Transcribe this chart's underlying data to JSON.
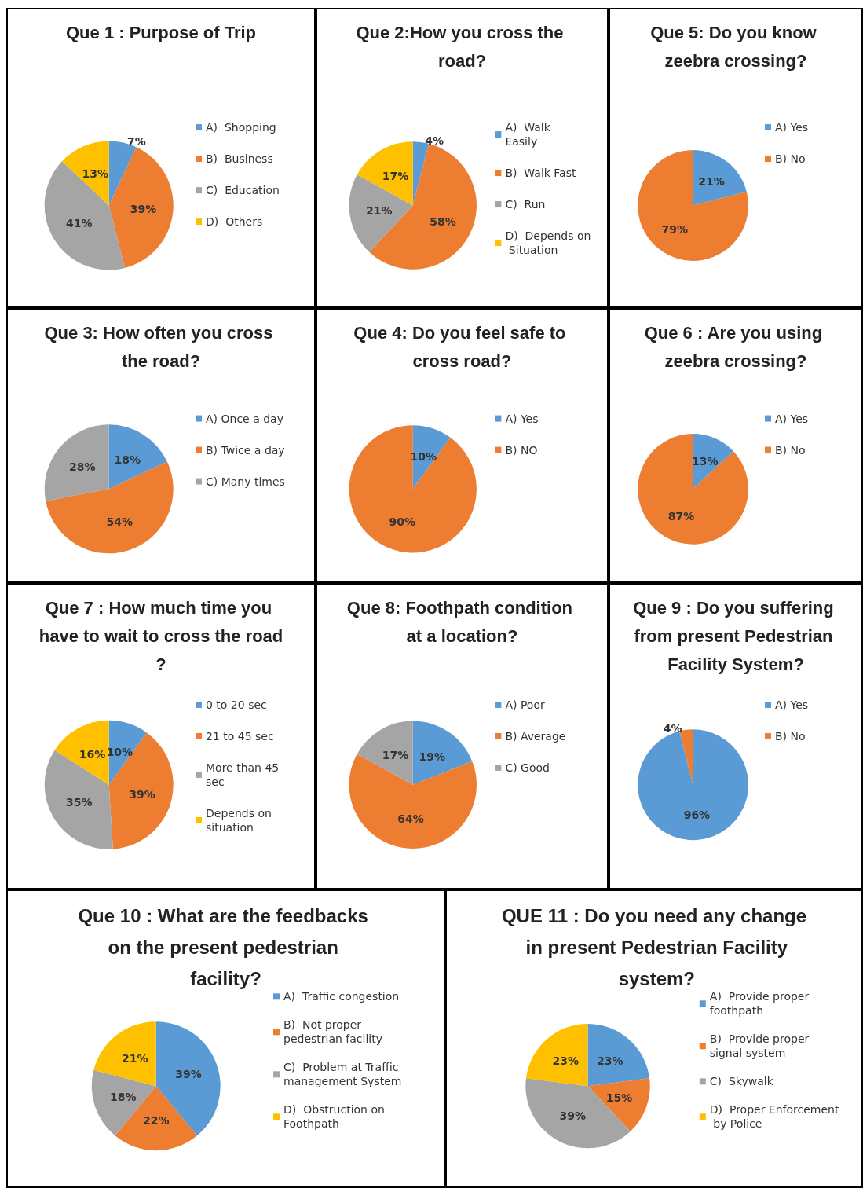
{
  "chart_data": [
    {
      "type": "pie",
      "title": "Que 1 : Purpose of Trip",
      "categories": [
        "A)  Shopping",
        "B)  Business",
        "C)  Education",
        "D)  Others"
      ],
      "values": [
        7,
        39,
        41,
        13
      ],
      "value_labels": [
        "7%",
        "39%",
        "41%",
        "13%"
      ],
      "colors": [
        "#5b9bd5",
        "#ed7d31",
        "#a5a5a5",
        "#ffc000"
      ],
      "legend": "right"
    },
    {
      "type": "pie",
      "title": "Que 2:How you cross the road?",
      "categories": [
        "A)  Walk Easily",
        "B)  Walk Fast",
        "C)  Run",
        "D)  Depends on Situation"
      ],
      "values": [
        4,
        58,
        21,
        17
      ],
      "value_labels": [
        "4%",
        "58%",
        "21%",
        "17%"
      ],
      "colors": [
        "#5b9bd5",
        "#ed7d31",
        "#a5a5a5",
        "#ffc000"
      ],
      "legend": "right"
    },
    {
      "type": "pie",
      "title": "Que 5: Do you know zeebra crossing?",
      "categories": [
        "A) Yes",
        "B) No"
      ],
      "values": [
        21,
        79
      ],
      "value_labels": [
        "21%",
        "79%"
      ],
      "colors": [
        "#5b9bd5",
        "#ed7d31"
      ],
      "legend": "right"
    },
    {
      "type": "pie",
      "title": "Que 3: How often you cross the road?",
      "categories": [
        "A) Once a day",
        "B) Twice a day",
        "C) Many times"
      ],
      "values": [
        18,
        54,
        28
      ],
      "value_labels": [
        "18%",
        "54%",
        "28%"
      ],
      "colors": [
        "#5b9bd5",
        "#ed7d31",
        "#a5a5a5"
      ],
      "legend": "right"
    },
    {
      "type": "pie",
      "title": "Que 4: Do you feel safe to cross road?",
      "categories": [
        "A) Yes",
        "B) NO"
      ],
      "values": [
        10,
        90
      ],
      "value_labels": [
        "10%",
        "90%"
      ],
      "colors": [
        "#5b9bd5",
        "#ed7d31"
      ],
      "legend": "right"
    },
    {
      "type": "pie",
      "title": "Que 6 : Are you using zeebra crossing?",
      "categories": [
        "A) Yes",
        "B) No"
      ],
      "values": [
        13,
        87
      ],
      "value_labels": [
        "13%",
        "87%"
      ],
      "colors": [
        "#5b9bd5",
        "#ed7d31"
      ],
      "legend": "right"
    },
    {
      "type": "pie",
      "title": "Que 7 : How much time you have to wait to cross the road?",
      "categories": [
        "0 to 20 sec",
        "21 to 45 sec",
        "More than 45 sec",
        "Depends on situation"
      ],
      "values": [
        10,
        39,
        35,
        16
      ],
      "value_labels": [
        "10%",
        "39%",
        "35%",
        "16%"
      ],
      "colors": [
        "#5b9bd5",
        "#ed7d31",
        "#a5a5a5",
        "#ffc000"
      ],
      "legend": "right"
    },
    {
      "type": "pie",
      "title": "Que 8: Foothpath condition at a location?",
      "categories": [
        "A) Poor",
        "B) Average",
        "C) Good"
      ],
      "values": [
        19,
        64,
        17
      ],
      "value_labels": [
        "19%",
        "64%",
        "17%"
      ],
      "colors": [
        "#5b9bd5",
        "#ed7d31",
        "#a5a5a5"
      ],
      "legend": "right"
    },
    {
      "type": "pie",
      "title": "Que 9 : Do you suffering from present Pedestrian Facility System?",
      "categories": [
        "A) Yes",
        "B) No"
      ],
      "values": [
        96,
        4
      ],
      "value_labels": [
        "96%",
        "4%"
      ],
      "colors": [
        "#5b9bd5",
        "#ed7d31"
      ],
      "legend": "right"
    },
    {
      "type": "pie",
      "title": "Que 10 : What are the feedbacks on the present pedestrian facility?",
      "categories": [
        "A)  Traffic congestion",
        "B)  Not proper pedestrian facility",
        "C)  Problem at Traffic management System",
        "D)  Obstruction on Foothpath"
      ],
      "values": [
        39,
        22,
        18,
        21
      ],
      "value_labels": [
        "39%",
        "22%",
        "18%",
        "21%"
      ],
      "colors": [
        "#5b9bd5",
        "#ed7d31",
        "#a5a5a5",
        "#ffc000"
      ],
      "legend": "right"
    },
    {
      "type": "pie",
      "title": "QUE 11 : Do you need any change in present Pedestrian Facility system?",
      "categories": [
        "A)  Provide proper foothpath",
        "B)  Provide proper signal system",
        "C)  Skywalk",
        "D)  Proper Enforcement by Police"
      ],
      "values": [
        23,
        15,
        39,
        23
      ],
      "value_labels": [
        "23%",
        "15%",
        "39%",
        "23%"
      ],
      "colors": [
        "#5b9bd5",
        "#ed7d31",
        "#a5a5a5",
        "#ffc000"
      ],
      "legend": "right"
    }
  ]
}
